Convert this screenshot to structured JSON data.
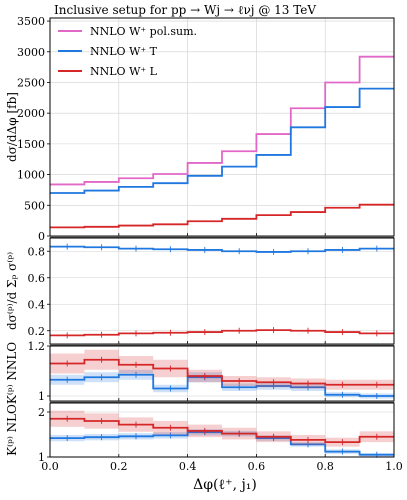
{
  "figure_title": "Inclusive setup for pp → Wj → ℓνj @ 13 TeV",
  "xlabel": "Δφ(ℓ⁺, j₁)",
  "colors": {
    "pol_sum": "#e268c8",
    "transverse": "#1f77e0",
    "longitudinal": "#d62728",
    "frame_line": "#555555"
  },
  "chart_data": [
    {
      "type": "line",
      "panel": "main",
      "ylabel": "dσ/dΔφ [fb]",
      "ylim": [
        0,
        3550
      ],
      "yticks": [
        0,
        500,
        1000,
        1500,
        2000,
        2500,
        3000,
        3500
      ],
      "xlim": [
        0,
        1
      ],
      "legend_position": "top-left",
      "bin_edges": [
        0,
        0.1,
        0.2,
        0.3,
        0.4,
        0.5,
        0.6,
        0.7,
        0.8,
        0.9,
        1.0
      ],
      "series": [
        {
          "name": "NNLO W⁺ pol.sum.",
          "key": "pol_sum",
          "values": [
            840,
            880,
            940,
            1010,
            1190,
            1380,
            1660,
            2080,
            2500,
            2920
          ]
        },
        {
          "name": "NNLO W⁺ T",
          "key": "transverse",
          "values": [
            700,
            740,
            800,
            860,
            980,
            1130,
            1320,
            1770,
            2100,
            2400
          ]
        },
        {
          "name": "NNLO W⁺ L",
          "key": "longitudinal",
          "values": [
            140,
            150,
            170,
            190,
            240,
            280,
            340,
            390,
            460,
            510
          ]
        }
      ]
    },
    {
      "type": "line",
      "panel": "fraction",
      "ylabel": "dσ⁽ᵖ⁾/d Σₚ σ⁽ᵖ⁾",
      "ylim": [
        0.1,
        0.9
      ],
      "yticks": [
        0.2,
        0.4,
        0.6,
        0.8
      ],
      "series": [
        {
          "key": "transverse",
          "values": [
            0.835,
            0.83,
            0.82,
            0.815,
            0.81,
            0.8,
            0.795,
            0.8,
            0.81,
            0.82
          ]
        },
        {
          "key": "longitudinal",
          "values": [
            0.165,
            0.17,
            0.18,
            0.185,
            0.19,
            0.2,
            0.205,
            0.2,
            0.19,
            0.18
          ]
        }
      ]
    },
    {
      "type": "line",
      "panel": "K_NNLO",
      "ylabel": "K⁽ᵖ⁾ NNLO",
      "ylim": [
        0.98,
        1.2
      ],
      "yticks": [
        1.0,
        1.2
      ],
      "series": [
        {
          "key": "transverse",
          "values": [
            1.065,
            1.075,
            1.085,
            1.03,
            1.075,
            1.035,
            1.04,
            1.035,
            1.005,
            1.0
          ],
          "band": [
            0.02,
            0.02,
            0.02,
            0.015,
            0.02,
            0.015,
            0.015,
            0.015,
            0.01,
            0.01
          ]
        },
        {
          "key": "longitudinal",
          "values": [
            1.13,
            1.145,
            1.125,
            1.11,
            1.08,
            1.06,
            1.055,
            1.05,
            1.045,
            1.045
          ],
          "band": [
            0.04,
            0.04,
            0.035,
            0.035,
            0.025,
            0.02,
            0.02,
            0.02,
            0.02,
            0.02
          ]
        }
      ]
    },
    {
      "type": "line",
      "panel": "K_NLO",
      "ylabel": "K⁽ᵖ⁾ NLO",
      "ylim": [
        1.0,
        2.2
      ],
      "yticks": [
        1,
        2
      ],
      "series": [
        {
          "key": "transverse",
          "values": [
            1.42,
            1.44,
            1.46,
            1.48,
            1.55,
            1.52,
            1.42,
            1.28,
            1.12,
            1.05
          ],
          "band": [
            0.07,
            0.07,
            0.07,
            0.07,
            0.07,
            0.06,
            0.06,
            0.05,
            0.05,
            0.04
          ]
        },
        {
          "key": "longitudinal",
          "values": [
            1.85,
            1.8,
            1.72,
            1.65,
            1.58,
            1.52,
            1.45,
            1.38,
            1.33,
            1.45
          ],
          "band": [
            0.18,
            0.17,
            0.16,
            0.15,
            0.14,
            0.13,
            0.12,
            0.11,
            0.1,
            0.12
          ]
        }
      ]
    }
  ],
  "xticks": [
    "0.0",
    "0.2",
    "0.4",
    "0.6",
    "0.8",
    "1.0"
  ]
}
